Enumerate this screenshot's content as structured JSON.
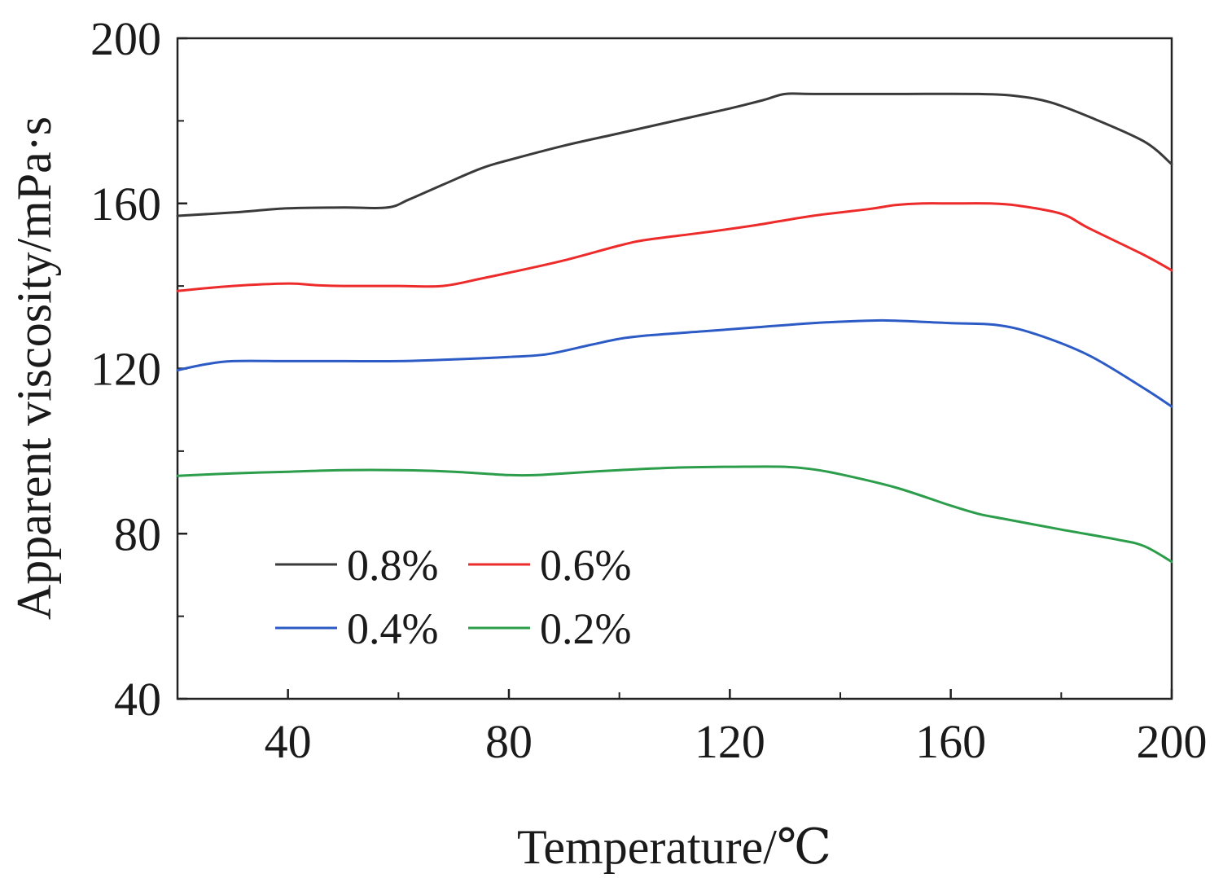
{
  "chart_data": {
    "type": "line",
    "title": "",
    "xlabel": "Temperature/℃",
    "ylabel": "Apparent viscosity/mPa·s",
    "xlim": [
      20,
      200
    ],
    "ylim": [
      40,
      200
    ],
    "xticks": [
      40,
      80,
      120,
      160,
      200
    ],
    "yticks": [
      40,
      80,
      120,
      160,
      200
    ],
    "xticks_minor": [
      60,
      100,
      140,
      180
    ],
    "yticks_minor": [
      60,
      100,
      140,
      180
    ],
    "grid": false,
    "legend_position": "bottom-left",
    "series": [
      {
        "name": "0.8%",
        "color": "#3a3a3a",
        "x": [
          20,
          30,
          40,
          50,
          58,
          62,
          68,
          75,
          80,
          90,
          100,
          110,
          120,
          126,
          130,
          135,
          150,
          165,
          172,
          178,
          185,
          195,
          200
        ],
        "y": [
          157,
          157.8,
          158.8,
          159,
          159,
          161,
          164.5,
          168.5,
          170.5,
          174,
          177,
          180,
          183,
          185,
          186.5,
          186.5,
          186.5,
          186.5,
          186,
          184.5,
          181,
          175,
          169.5
        ]
      },
      {
        "name": "0.6%",
        "color": "#ee2b2b",
        "x": [
          20,
          30,
          40,
          45,
          50,
          60,
          68,
          75,
          80,
          90,
          100,
          105,
          115,
          125,
          135,
          145,
          150,
          155,
          160,
          167,
          172,
          180,
          185,
          195,
          200
        ],
        "y": [
          138.8,
          140,
          140.6,
          140.2,
          140,
          140,
          140,
          141.8,
          143.2,
          146.2,
          149.8,
          151.2,
          152.9,
          154.8,
          157,
          158.6,
          159.6,
          160,
          160,
          160,
          159.5,
          157.5,
          154,
          147.5,
          143.8
        ]
      },
      {
        "name": "0.4%",
        "color": "#2d5bc5",
        "x": [
          20,
          25,
          30,
          40,
          50,
          60,
          70,
          80,
          87,
          95,
          100,
          105,
          115,
          125,
          135,
          145,
          150,
          160,
          168,
          175,
          185,
          195,
          200
        ],
        "y": [
          119.6,
          121,
          121.8,
          121.8,
          121.8,
          121.8,
          122.2,
          122.8,
          123.5,
          125.8,
          127.2,
          128,
          129,
          130,
          131,
          131.6,
          131.6,
          131,
          130.6,
          128.5,
          123.2,
          115.2,
          110.8
        ]
      },
      {
        "name": "0.2%",
        "color": "#2c9d4a",
        "x": [
          20,
          30,
          40,
          50,
          60,
          70,
          80,
          85,
          90,
          100,
          110,
          120,
          130,
          135,
          140,
          150,
          160,
          165,
          170,
          180,
          190,
          195,
          200
        ],
        "y": [
          94,
          94.6,
          95,
          95.4,
          95.4,
          95,
          94.2,
          94.2,
          94.6,
          95.4,
          96,
          96.2,
          96.2,
          95.6,
          94.4,
          91.2,
          86.8,
          84.8,
          83.5,
          81,
          78.6,
          77,
          73.2
        ]
      }
    ]
  }
}
